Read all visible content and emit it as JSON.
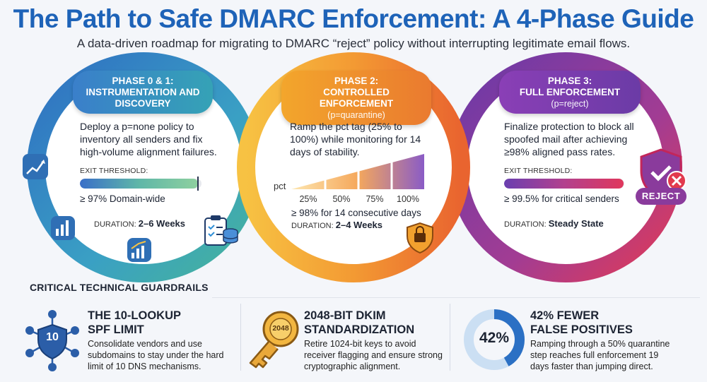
{
  "header": {
    "title": "The Path to Safe DMARC Enforcement: A 4-Phase Guide",
    "subtitle": "A data-driven roadmap for migrating to DMARC “reject” policy without interrupting legitimate email flows."
  },
  "phases": [
    {
      "label_line1": "PHASE 0 & 1:",
      "label_line2": "INSTRUMENTATION AND",
      "label_line3": "DISCOVERY",
      "description": "Deploy a p=none policy to inventory all senders and fix high-volume alignment failures.",
      "exit_label": "EXIT THRESHOLD:",
      "threshold": "≥ 97% Domain-wide",
      "threshold_fill": 0.97,
      "duration_label": "DURATION:",
      "duration": "2–6 Weeks",
      "color": "#3a7fca"
    },
    {
      "label_line1": "PHASE 2:",
      "label_line2": "CONTROLLED ENFORCEMENT",
      "label_sub": "(p=quarantine)",
      "description": "Ramp the pct tag (25% to 100%) while monitoring for 14 days of stability.",
      "pct_axis_label": "pct",
      "pct_steps": [
        "25%",
        "50%",
        "75%",
        "100%"
      ],
      "pct_values": [
        25,
        50,
        75,
        100
      ],
      "threshold": "≥ 98% for 14 consecutive days",
      "duration_label": "DURATION:",
      "duration": "2–4 Weeks",
      "color": "#f3a62c"
    },
    {
      "label_line1": "PHASE 3:",
      "label_line2": "FULL ENFORCEMENT",
      "label_sub": "(p=reject)",
      "description": "Finalize protection to block all spoofed mail after achieving ≥98% aligned pass rates.",
      "exit_label": "EXIT THRESHOLD:",
      "threshold": "≥ 99.5% for critical senders",
      "threshold_fill": 0.995,
      "duration_label": "DURATION:",
      "duration": "Steady State",
      "badge": "REJECT",
      "color": "#8a3fb6"
    }
  ],
  "guardrails": {
    "heading": "CRITICAL TECHNICAL GUARDRAILS",
    "items": [
      {
        "icon": "network-shield-icon",
        "icon_text": "10",
        "title_line1": "THE 10-LOOKUP",
        "title_line2": "SPF LIMIT",
        "body": "Consolidate vendors and use subdomains to stay under the hard limit of 10 DNS mechanisms."
      },
      {
        "icon": "key-icon",
        "icon_text": "2048",
        "title_line1": "2048-BIT DKIM",
        "title_line2": "STANDARDIZATION",
        "body": "Retire 1024-bit keys to avoid receiver flagging and ensure strong cryptographic alignment."
      },
      {
        "icon": "donut-icon",
        "icon_text": "42%",
        "donut_value": 42,
        "title_line1": "42% FEWER",
        "title_line2": "FALSE POSITIVES",
        "body": "Ramping through a 50% quarantine step reaches full enforcement 19 days faster than jumping direct."
      }
    ]
  }
}
